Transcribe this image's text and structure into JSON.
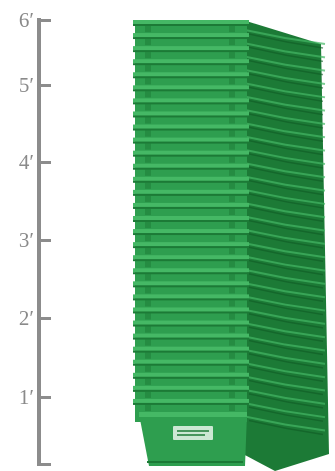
{
  "ruler": {
    "marks": [
      {
        "label": "6′"
      },
      {
        "label": "5′"
      },
      {
        "label": "4′"
      },
      {
        "label": "3′"
      },
      {
        "label": "2′"
      },
      {
        "label": "1′"
      }
    ],
    "color": "#8c8c8c"
  },
  "stack": {
    "bin_color": "#2e9e4f",
    "bin_dark": "#1c7a36",
    "bin_light": "#45b865",
    "bin_count": 30
  }
}
